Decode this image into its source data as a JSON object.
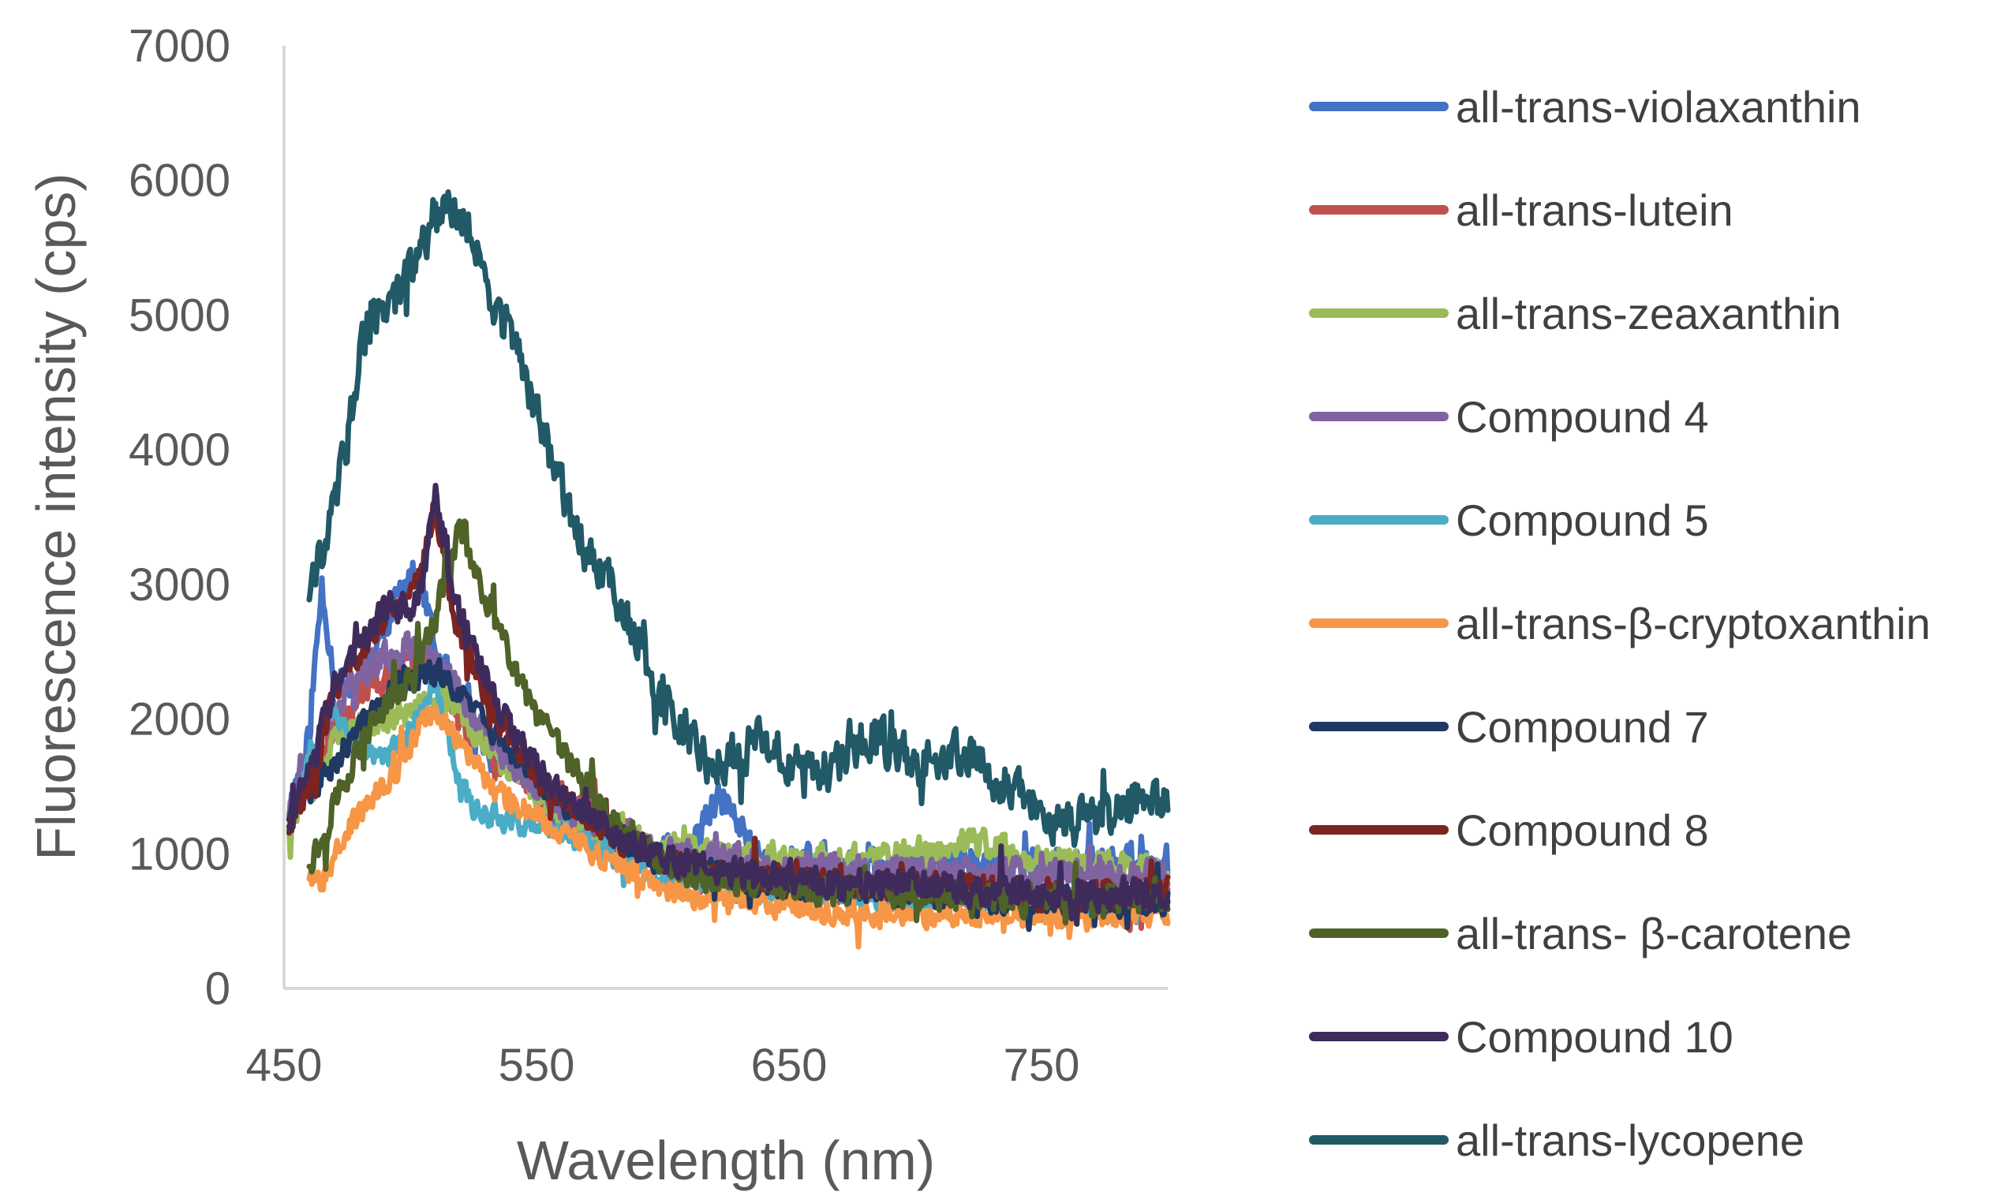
{
  "chart_data": {
    "type": "line",
    "title": "",
    "xlabel": "Wavelength (nm)",
    "ylabel": "Fluorescence intensity (cps)",
    "xlim": [
      450,
      800
    ],
    "ylim": [
      0,
      7000
    ],
    "x_ticks": [
      450,
      550,
      650,
      750
    ],
    "y_ticks": [
      0,
      1000,
      2000,
      3000,
      4000,
      5000,
      6000,
      7000
    ],
    "x_tick_labels": [
      "450",
      "550",
      "650",
      "750"
    ],
    "y_tick_labels": [
      "0",
      "1000",
      "2000",
      "3000",
      "4000",
      "5000",
      "6000",
      "7000"
    ],
    "grid": false,
    "legend_position": "right",
    "series": [
      {
        "name": "all-trans-violaxanthin",
        "color": "#4472C4",
        "noise": 170,
        "seed": 11,
        "x": [
          452,
          460,
          465,
          470,
          478,
          490,
          500,
          505,
          510,
          515,
          520,
          530,
          540,
          550,
          560,
          570,
          580,
          600,
          610,
          620,
          625,
          630,
          640,
          650,
          680,
          700,
          720,
          740,
          760,
          780,
          800
        ],
        "y": [
          1350,
          1900,
          3000,
          2300,
          2200,
          2700,
          3100,
          2950,
          2500,
          2300,
          2100,
          1800,
          1650,
          1500,
          1300,
          1150,
          1050,
          1000,
          1000,
          1350,
          1400,
          1200,
          950,
          950,
          900,
          900,
          950,
          900,
          900,
          950,
          950
        ]
      },
      {
        "name": "all-trans-lutein",
        "color": "#C0504D",
        "noise": 150,
        "seed": 23,
        "x": [
          452,
          460,
          470,
          480,
          490,
          500,
          505,
          510,
          515,
          520,
          530,
          540,
          550,
          560,
          570,
          580,
          600,
          620,
          650,
          700,
          750,
          800
        ],
        "y": [
          1300,
          1550,
          1950,
          2200,
          2300,
          2400,
          2450,
          2350,
          2200,
          2000,
          1800,
          1600,
          1500,
          1400,
          1350,
          1200,
          900,
          800,
          750,
          750,
          700,
          650
        ]
      },
      {
        "name": "all-trans-zeaxanthin",
        "color": "#9BBB59",
        "noise": 150,
        "seed": 37,
        "x": [
          452,
          460,
          470,
          480,
          490,
          500,
          510,
          515,
          520,
          530,
          540,
          550,
          560,
          570,
          580,
          600,
          620,
          650,
          680,
          700,
          720,
          740,
          760,
          780,
          800
        ],
        "y": [
          1250,
          1500,
          1800,
          1950,
          2000,
          2050,
          2100,
          2200,
          2050,
          1800,
          1600,
          1400,
          1300,
          1200,
          1100,
          1050,
          1000,
          950,
          950,
          1000,
          1100,
          1000,
          950,
          900,
          900
        ]
      },
      {
        "name": "Compound 4",
        "color": "#8064A2",
        "noise": 160,
        "seed": 41,
        "x": [
          452,
          460,
          470,
          480,
          490,
          500,
          505,
          510,
          515,
          520,
          530,
          540,
          550,
          560,
          580,
          600,
          620,
          650,
          700,
          750,
          800
        ],
        "y": [
          1300,
          1650,
          2100,
          2350,
          2450,
          2550,
          2500,
          2450,
          2350,
          2200,
          1900,
          1700,
          1500,
          1350,
          1150,
          1000,
          950,
          900,
          850,
          850,
          850
        ]
      },
      {
        "name": "Compound 5",
        "color": "#4BACC6",
        "noise": 120,
        "seed": 53,
        "x": [
          452,
          458,
          465,
          470,
          475,
          480,
          490,
          500,
          505,
          510,
          515,
          520,
          525,
          530,
          540,
          550,
          560,
          570,
          580,
          600,
          650,
          700,
          750,
          800
        ],
        "y": [
          1300,
          1600,
          2000,
          2050,
          1950,
          1800,
          1700,
          1900,
          2100,
          2300,
          1900,
          1500,
          1350,
          1300,
          1250,
          1200,
          1150,
          1100,
          1000,
          800,
          700,
          650,
          650,
          650
        ]
      },
      {
        "name": "all-trans-β-cryptoxanthin",
        "color": "#F79646",
        "noise": 120,
        "seed": 67,
        "x": [
          460,
          465,
          470,
          480,
          490,
          500,
          505,
          510,
          515,
          520,
          530,
          540,
          550,
          560,
          580,
          600,
          620,
          650,
          700,
          750,
          800
        ],
        "y": [
          850,
          800,
          1050,
          1300,
          1500,
          1800,
          2000,
          2050,
          1950,
          1800,
          1550,
          1400,
          1300,
          1150,
          950,
          750,
          650,
          600,
          550,
          550,
          550
        ]
      },
      {
        "name": "Compound 7",
        "color": "#1F3864",
        "noise": 140,
        "seed": 71,
        "x": [
          452,
          460,
          470,
          480,
          490,
          500,
          505,
          510,
          515,
          520,
          530,
          540,
          550,
          560,
          580,
          600,
          620,
          650,
          700,
          750,
          800
        ],
        "y": [
          1300,
          1450,
          1700,
          1950,
          2150,
          2300,
          2350,
          2350,
          2300,
          2200,
          1950,
          1750,
          1550,
          1400,
          1150,
          950,
          850,
          750,
          700,
          650,
          650
        ]
      },
      {
        "name": "Compound 8",
        "color": "#7B2422",
        "noise": 150,
        "seed": 83,
        "x": [
          452,
          460,
          470,
          480,
          490,
          500,
          505,
          510,
          515,
          520,
          530,
          540,
          550,
          560,
          580,
          600,
          620,
          650,
          700,
          750,
          800
        ],
        "y": [
          1200,
          1500,
          2200,
          2500,
          2750,
          2950,
          3200,
          3600,
          3000,
          2600,
          2200,
          1850,
          1600,
          1400,
          1150,
          950,
          850,
          800,
          750,
          700,
          700
        ]
      },
      {
        "name": "all-trans- β-carotene",
        "color": "#4F6228",
        "noise": 150,
        "seed": 97,
        "x": [
          460,
          465,
          470,
          480,
          490,
          500,
          505,
          510,
          515,
          520,
          525,
          530,
          540,
          550,
          560,
          570,
          580,
          600,
          620,
          650,
          700,
          750,
          800
        ],
        "y": [
          950,
          1100,
          1400,
          1800,
          2100,
          2300,
          2500,
          2750,
          3100,
          3450,
          3150,
          2900,
          2400,
          2000,
          1750,
          1500,
          1250,
          950,
          800,
          750,
          700,
          650,
          650
        ]
      },
      {
        "name": "Compound 10",
        "color": "#3F2B5B",
        "noise": 160,
        "seed": 103,
        "x": [
          452,
          460,
          470,
          480,
          490,
          500,
          505,
          510,
          515,
          520,
          530,
          540,
          550,
          560,
          580,
          600,
          620,
          650,
          700,
          750,
          800
        ],
        "y": [
          1250,
          1550,
          2250,
          2600,
          2800,
          2850,
          3000,
          3650,
          3200,
          2750,
          2300,
          1900,
          1650,
          1450,
          1150,
          950,
          900,
          800,
          750,
          700,
          700
        ]
      },
      {
        "name": "all-trans-lycopene",
        "color": "#215967",
        "noise": 230,
        "seed": 131,
        "x": [
          460,
          465,
          470,
          475,
          480,
          485,
          490,
          495,
          500,
          505,
          510,
          515,
          520,
          525,
          530,
          535,
          540,
          550,
          560,
          570,
          580,
          590,
          600,
          620,
          640,
          650,
          660,
          670,
          680,
          690,
          700,
          710,
          720,
          730,
          740,
          750,
          760,
          770,
          780,
          790,
          800
        ],
        "y": [
          2950,
          3250,
          3600,
          4100,
          4700,
          5050,
          5000,
          5150,
          5400,
          5550,
          5700,
          5800,
          5800,
          5550,
          5200,
          5050,
          4800,
          4300,
          3700,
          3250,
          3000,
          2600,
          2100,
          1650,
          1850,
          1700,
          1600,
          1700,
          1850,
          1800,
          1650,
          1700,
          1750,
          1600,
          1450,
          1300,
          1200,
          1250,
          1350,
          1350,
          1400
        ]
      }
    ]
  }
}
